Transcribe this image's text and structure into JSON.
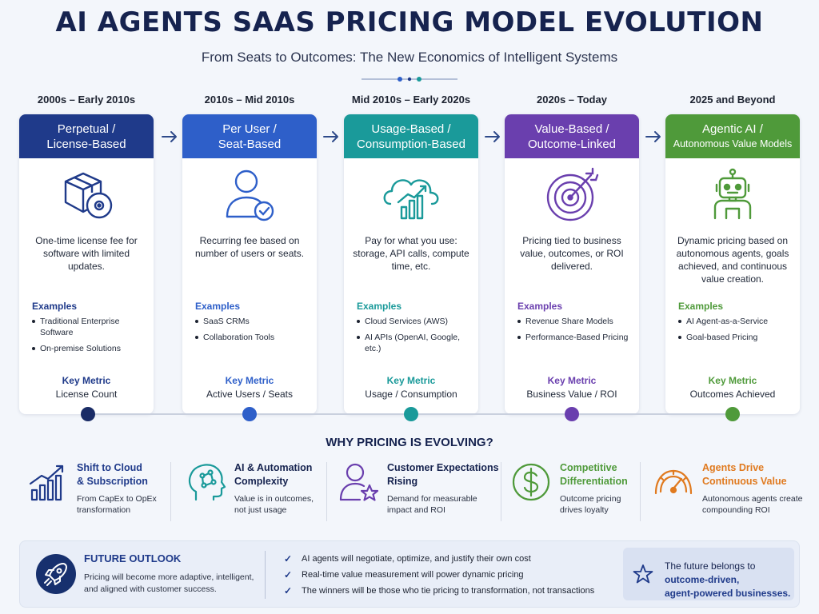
{
  "title": "AI AGENTS SAAS PRICING MODEL EVOLUTION",
  "subtitle": "From Seats to Outcomes: The New Economics of Intelligent Systems",
  "eras": [
    {
      "period": "2000s – Early 2010s",
      "name_line1": "Perpetual /",
      "name_line2": "License-Based",
      "color": "#1f3a8a",
      "icon": "box-disc-icon",
      "description": "One-time license fee for software with limited updates.",
      "examples_label": "Examples",
      "examples": [
        "Traditional Enterprise Software",
        "On-premise Solutions"
      ],
      "metric_label": "Key Metric",
      "metric": "License Count"
    },
    {
      "period": "2010s – Mid 2010s",
      "name_line1": "Per User /",
      "name_line2": "Seat-Based",
      "color": "#2e5fc9",
      "icon": "user-check-icon",
      "description": "Recurring fee based on number of users or seats.",
      "examples_label": "Examples",
      "examples": [
        "SaaS CRMs",
        "Collaboration Tools"
      ],
      "metric_label": "Key Metric",
      "metric": "Active Users / Seats"
    },
    {
      "period": "Mid 2010s – Early 2020s",
      "name_line1": "Usage-Based /",
      "name_line2": "Consumption-Based",
      "color": "#1a9a9a",
      "icon": "cloud-chart-icon",
      "description": "Pay for what you use: storage, API calls, compute time, etc.",
      "examples_label": "Examples",
      "examples": [
        "Cloud Services (AWS)",
        "AI APIs (OpenAI, Google, etc.)"
      ],
      "metric_label": "Key Metric",
      "metric": "Usage / Consumption"
    },
    {
      "period": "2020s – Today",
      "name_line1": "Value-Based /",
      "name_line2": "Outcome-Linked",
      "color": "#6a3fae",
      "icon": "target-icon",
      "description": "Pricing tied to business value, outcomes, or ROI delivered.",
      "examples_label": "Examples",
      "examples": [
        "Revenue Share Models",
        "Performance-Based Pricing"
      ],
      "metric_label": "Key Metric",
      "metric": "Business Value / ROI"
    },
    {
      "period": "2025 and Beyond",
      "name_line1": "Agentic AI /",
      "name_line2": "Autonomous Value Models",
      "color": "#4f9a3a",
      "icon": "robot-icon",
      "description": "Dynamic pricing based on autonomous agents, goals achieved, and continuous value creation.",
      "examples_label": "Examples",
      "examples": [
        "AI Agent-as-a-Service",
        "Goal-based Pricing"
      ],
      "metric_label": "Key Metric",
      "metric": "Outcomes Achieved"
    }
  ],
  "why": {
    "title": "WHY PRICING IS EVOLVING?",
    "reasons": [
      {
        "title1": "Shift to Cloud",
        "title2": "& Subscription",
        "desc1": "From CapEx to OpEx",
        "desc2": "transformation",
        "color": "#1f3a8a",
        "icon": "growth-chart-icon"
      },
      {
        "title1": "AI & Automation",
        "title2": "Complexity",
        "desc1": "Value is in outcomes,",
        "desc2": "not just usage",
        "color": "#1a9a9a",
        "icon": "ai-head-icon"
      },
      {
        "title1": "Customer Expectations",
        "title2": "Rising",
        "desc1": "Demand for measurable",
        "desc2": "impact and ROI",
        "color": "#6a3fae",
        "icon": "user-star-icon"
      },
      {
        "title1": "Competitive",
        "title2": "Differentiation",
        "desc1": "Outcome pricing",
        "desc2": "drives loyalty",
        "color": "#4f9a3a",
        "icon": "dollar-circle-icon"
      },
      {
        "title1": "Agents Drive",
        "title2": "Continuous Value",
        "desc1": "Autonomous agents create",
        "desc2": "compounding ROI",
        "color": "#e07a1f",
        "icon": "gauge-icon"
      }
    ]
  },
  "outlook": {
    "title": "FUTURE OUTLOOK",
    "desc_line1": "Pricing will become more adaptive, intelligent,",
    "desc_line2": "and aligned with customer success.",
    "points": [
      "AI agents will negotiate, optimize, and justify their own cost",
      "Real-time value measurement will power dynamic pricing",
      "The winners will be those who tie pricing to transformation, not transactions"
    ],
    "future_line1": "The future belongs to",
    "future_line2": "outcome-driven,",
    "future_line3": "agent-powered businesses."
  }
}
